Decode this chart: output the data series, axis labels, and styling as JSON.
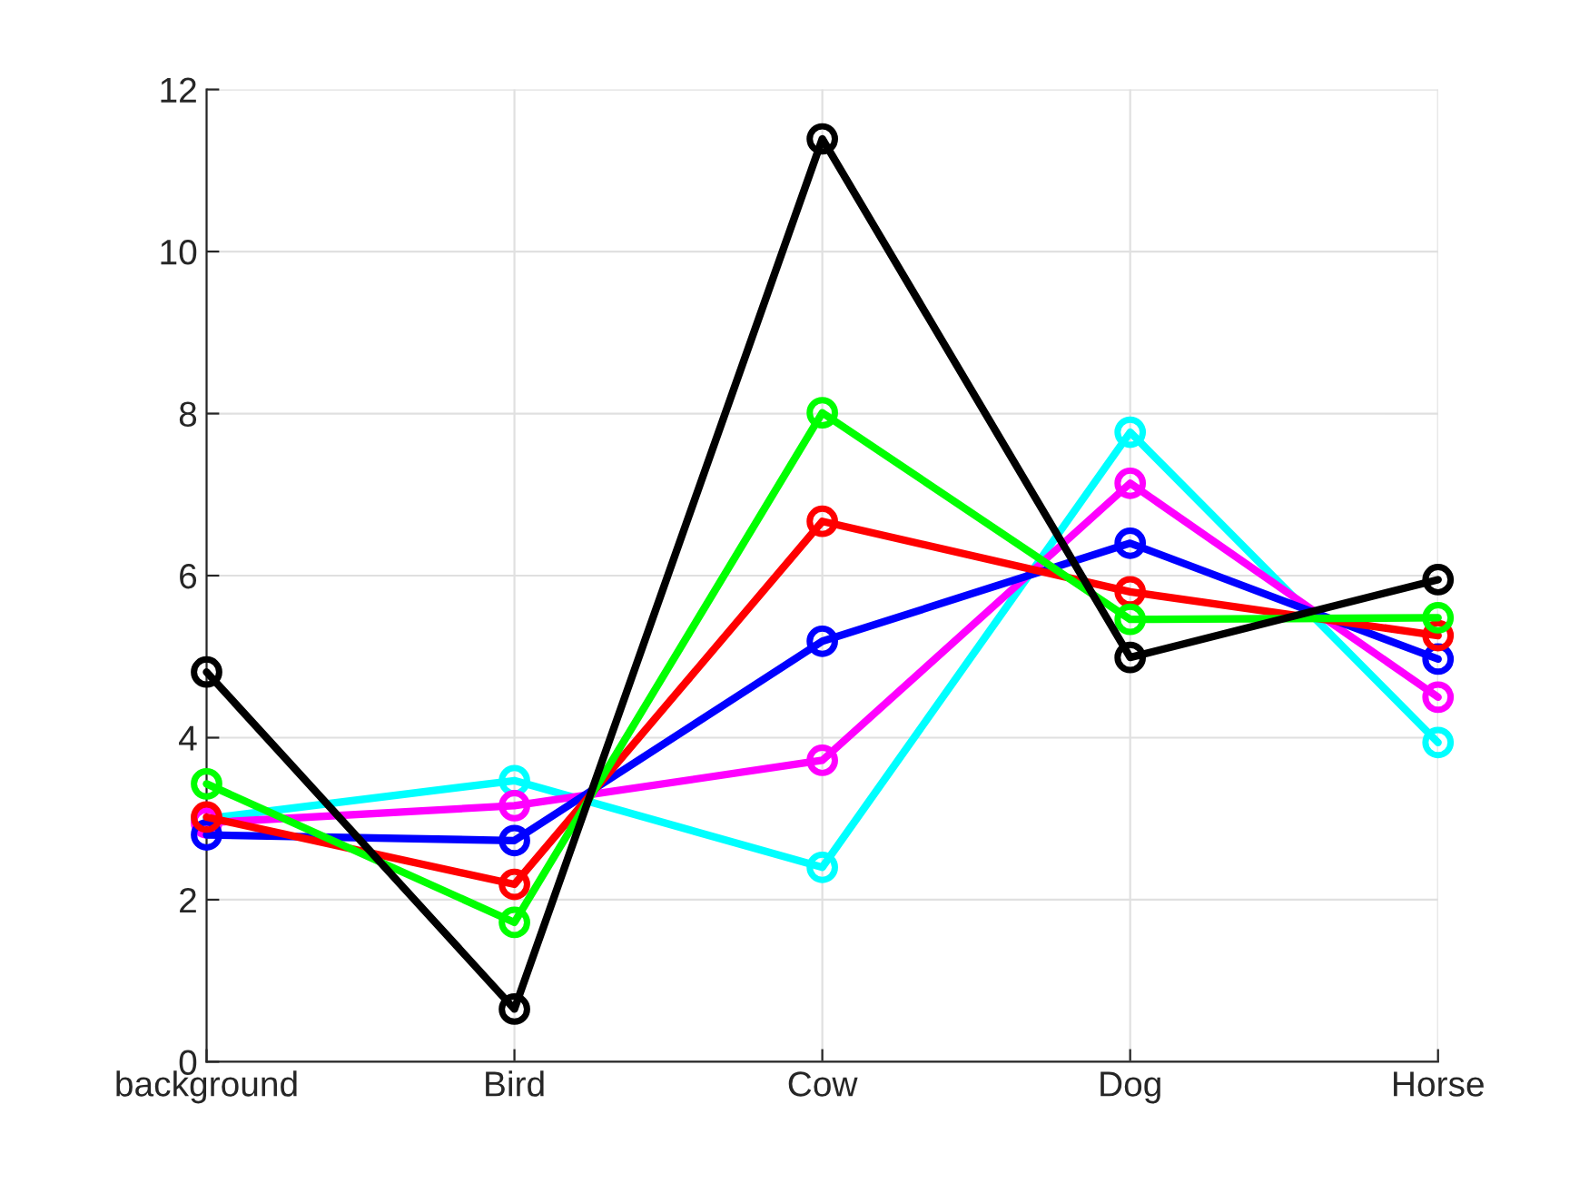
{
  "chart_data": {
    "type": "line",
    "categories": [
      "background",
      "Bird",
      "Cow",
      "Dog",
      "Horse"
    ],
    "series": [
      {
        "color": "#00ffff",
        "values": [
          3.0,
          3.47,
          2.4,
          7.77,
          3.94
        ]
      },
      {
        "color": "#ff00ff",
        "values": [
          2.95,
          3.16,
          3.72,
          7.14,
          4.5
        ]
      },
      {
        "color": "#0000ff",
        "values": [
          2.8,
          2.73,
          5.19,
          6.4,
          4.97
        ]
      },
      {
        "color": "#ff0000",
        "values": [
          3.02,
          2.19,
          6.67,
          5.8,
          5.26
        ]
      },
      {
        "color": "#00ff00",
        "values": [
          3.43,
          1.72,
          8.01,
          5.46,
          5.48
        ]
      },
      {
        "color": "#000000",
        "values": [
          4.81,
          0.65,
          11.39,
          4.99,
          5.95
        ]
      }
    ],
    "ylim": [
      0,
      12
    ],
    "yticks": [
      0,
      2,
      4,
      6,
      8,
      10,
      12
    ],
    "grid": true,
    "marker": "circle",
    "line_style": "solid",
    "legend": false
  }
}
